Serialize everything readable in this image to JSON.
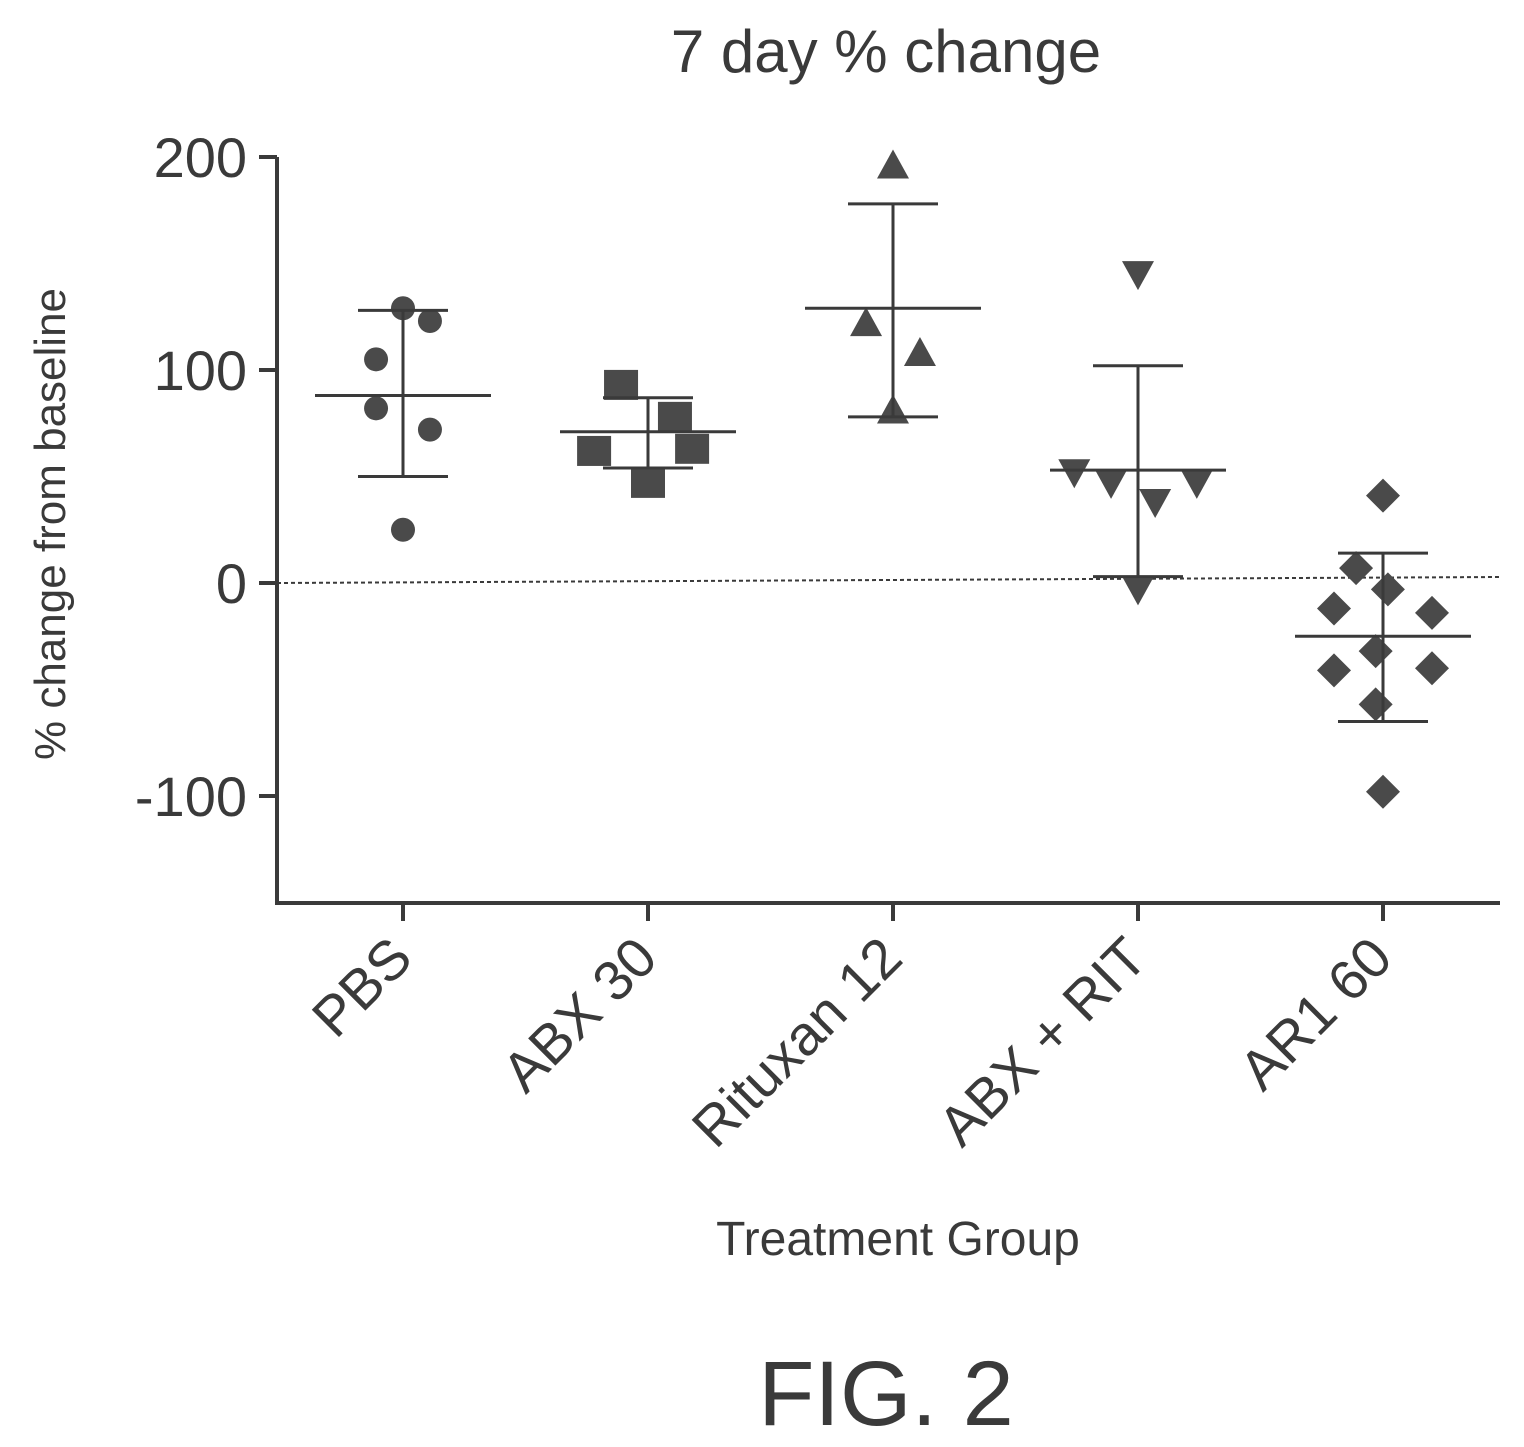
{
  "figure_label": "FIG. 2",
  "colors": {
    "ink": "#3a3a3a",
    "marker": "#4a4a4a"
  },
  "chart_data": {
    "type": "scatter",
    "title": "7 day % change",
    "xlabel": "Treatment Group",
    "ylabel": "% change from baseline",
    "ylim": [
      -150,
      200
    ],
    "yticks": [
      -100,
      0,
      100,
      200
    ],
    "ytick_labels": [
      "-100",
      "0",
      "100",
      "200"
    ],
    "reference_line": 0,
    "grid": false,
    "legend": "none",
    "categories": [
      "PBS",
      "ABX 30",
      "Rituxan 12",
      "ABX + RIT",
      "AR1 60"
    ],
    "series": [
      {
        "category": "PBS",
        "marker": "circle",
        "points": [
          {
            "dx": 0.0,
            "y": 129
          },
          {
            "dx": 0.11,
            "y": 123
          },
          {
            "dx": -0.11,
            "y": 105
          },
          {
            "dx": -0.11,
            "y": 82
          },
          {
            "dx": 0.11,
            "y": 72
          },
          {
            "dx": 0.0,
            "y": 25
          }
        ],
        "mean": 88,
        "upper": 128,
        "lower": 50
      },
      {
        "category": "ABX 30",
        "marker": "square",
        "points": [
          {
            "dx": -0.11,
            "y": 93
          },
          {
            "dx": 0.11,
            "y": 78
          },
          {
            "dx": -0.22,
            "y": 62
          },
          {
            "dx": 0.18,
            "y": 63
          },
          {
            "dx": 0.0,
            "y": 47
          }
        ],
        "mean": 71,
        "upper": 87,
        "lower": 54
      },
      {
        "category": "Rituxan 12",
        "marker": "triangle-up",
        "points": [
          {
            "dx": 0.0,
            "y": 196
          },
          {
            "dx": -0.11,
            "y": 122
          },
          {
            "dx": 0.11,
            "y": 108
          },
          {
            "dx": 0.0,
            "y": 81
          }
        ],
        "mean": 129,
        "upper": 178,
        "lower": 78
      },
      {
        "category": "ABX + RIT",
        "marker": "triangle-down",
        "points": [
          {
            "dx": 0.0,
            "y": 145
          },
          {
            "dx": -0.26,
            "y": 52
          },
          {
            "dx": -0.11,
            "y": 47
          },
          {
            "dx": 0.24,
            "y": 47
          },
          {
            "dx": 0.07,
            "y": 38
          },
          {
            "dx": 0.0,
            "y": -3
          }
        ],
        "mean": 53,
        "upper": 102,
        "lower": 3
      },
      {
        "category": "AR1 60",
        "marker": "diamond",
        "points": [
          {
            "dx": 0.0,
            "y": 41
          },
          {
            "dx": -0.11,
            "y": 7
          },
          {
            "dx": 0.02,
            "y": -3
          },
          {
            "dx": -0.2,
            "y": -12
          },
          {
            "dx": 0.2,
            "y": -14
          },
          {
            "dx": -0.03,
            "y": -32
          },
          {
            "dx": -0.2,
            "y": -41
          },
          {
            "dx": 0.2,
            "y": -40
          },
          {
            "dx": -0.03,
            "y": -57
          },
          {
            "dx": 0.0,
            "y": -98
          }
        ],
        "mean": -25,
        "upper": 14,
        "lower": -65
      }
    ]
  }
}
